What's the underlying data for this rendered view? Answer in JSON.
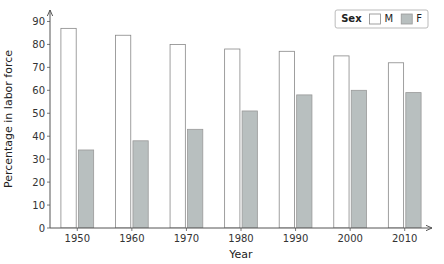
{
  "chart_data": {
    "type": "bar",
    "categories": [
      1950,
      1960,
      1970,
      1980,
      1990,
      2000,
      2010
    ],
    "series": [
      {
        "name": "M",
        "color": "#ffffff",
        "values": [
          87,
          84,
          80,
          78,
          77,
          75,
          72
        ]
      },
      {
        "name": "F",
        "color": "#b8bfbf",
        "values": [
          34,
          38,
          43,
          51,
          58,
          60,
          59
        ]
      }
    ],
    "x_label": "Year",
    "y_label": "Percentage in labor force",
    "legend_title": "Sex",
    "ylim": [
      0,
      95
    ],
    "yticks": [
      0,
      10,
      20,
      30,
      40,
      50,
      60,
      70,
      80,
      90
    ],
    "grid": false,
    "legend": "upper-right"
  }
}
